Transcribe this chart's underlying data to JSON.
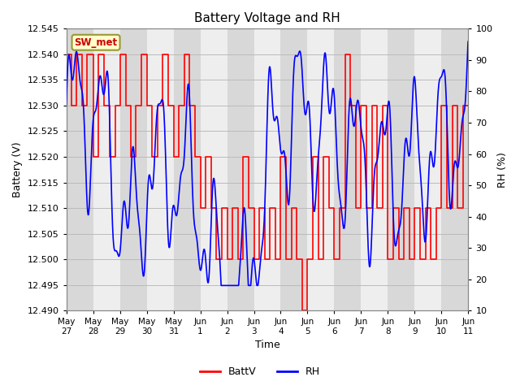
{
  "title": "Battery Voltage and RH",
  "xlabel": "Time",
  "ylabel_left": "Battery (V)",
  "ylabel_right": "RH (%)",
  "ylim_left": [
    12.49,
    12.545
  ],
  "ylim_right": [
    10,
    100
  ],
  "yticks_left": [
    12.49,
    12.495,
    12.5,
    12.505,
    12.51,
    12.515,
    12.52,
    12.525,
    12.53,
    12.535,
    12.54,
    12.545
  ],
  "yticks_right": [
    10,
    20,
    30,
    40,
    50,
    60,
    70,
    80,
    90,
    100
  ],
  "xtick_labels": [
    "May 27",
    "May 28",
    "May 29",
    "May 30",
    "May 31",
    "Jun 1",
    "Jun 2",
    "Jun 3",
    "Jun 4",
    "Jun 5",
    "Jun 6",
    "Jun 7",
    "Jun 8",
    "Jun 9",
    "Jun 10",
    "Jun 11"
  ],
  "label_box_text": "SW_met",
  "label_box_facecolor": "#ffffcc",
  "label_box_edgecolor": "#999933",
  "label_box_textcolor": "#cc0000",
  "legend_entries": [
    "BattV",
    "RH"
  ],
  "legend_colors": [
    "#ff0000",
    "#0000ff"
  ],
  "bg_color": "#ffffff",
  "plot_bg_color": "#d8d8d8",
  "band_color": "#eeeeee",
  "grid_color": "#bbbbbb",
  "batt_color": "#ff0000",
  "rh_color": "#0000ff",
  "batt_lw": 1.2,
  "rh_lw": 1.2,
  "batt_x": [
    0.0,
    0.18,
    0.18,
    0.38,
    0.38,
    0.58,
    0.58,
    0.78,
    0.78,
    1.0,
    1.0,
    1.2,
    1.2,
    1.42,
    1.42,
    1.62,
    1.62,
    1.82,
    1.82,
    2.02,
    2.02,
    2.22,
    2.22,
    2.42,
    2.42,
    2.6,
    2.6,
    2.8,
    2.8,
    3.0,
    3.0,
    3.2,
    3.2,
    3.42,
    3.42,
    3.6,
    3.6,
    3.8,
    3.8,
    4.0,
    4.0,
    4.2,
    4.2,
    4.4,
    4.4,
    4.58,
    4.58,
    4.8,
    4.8,
    5.0,
    5.0,
    5.2,
    5.2,
    5.4,
    5.4,
    5.6,
    5.6,
    5.8,
    5.8,
    6.0,
    6.0,
    6.2,
    6.2,
    6.4,
    6.4,
    6.6,
    6.6,
    6.8,
    6.8,
    7.0,
    7.0,
    7.2,
    7.2,
    7.4,
    7.4,
    7.6,
    7.6,
    7.8,
    7.8,
    8.0,
    8.0,
    8.2,
    8.2,
    8.4,
    8.4,
    8.6,
    8.6,
    8.8,
    8.8,
    9.0,
    9.0,
    9.2,
    9.2,
    9.42,
    9.42,
    9.6,
    9.6,
    9.8,
    9.8,
    10.0,
    10.0,
    10.2,
    10.2,
    10.4,
    10.4,
    10.6,
    10.6,
    10.8,
    10.8,
    11.0,
    11.0,
    11.2,
    11.2,
    11.4,
    11.4,
    11.6,
    11.6,
    11.8,
    11.8,
    12.0,
    12.0,
    12.2,
    12.2,
    12.4,
    12.4,
    12.6,
    12.6,
    12.8,
    12.8,
    13.0,
    13.0,
    13.2,
    13.2,
    13.4,
    13.4,
    13.6,
    13.6,
    13.8,
    13.8,
    14.0,
    14.0,
    14.2,
    14.2,
    14.4,
    14.4,
    14.6,
    14.6,
    14.8,
    14.8,
    15.0
  ],
  "batt_y": [
    12.54,
    12.54,
    12.53,
    12.53,
    12.54,
    12.54,
    12.53,
    12.53,
    12.54,
    12.54,
    12.52,
    12.52,
    12.54,
    12.54,
    12.53,
    12.53,
    12.52,
    12.52,
    12.53,
    12.53,
    12.54,
    12.54,
    12.53,
    12.53,
    12.52,
    12.52,
    12.53,
    12.53,
    12.54,
    12.54,
    12.53,
    12.53,
    12.52,
    12.52,
    12.53,
    12.53,
    12.54,
    12.54,
    12.53,
    12.53,
    12.52,
    12.52,
    12.53,
    12.53,
    12.54,
    12.54,
    12.53,
    12.53,
    12.52,
    12.52,
    12.51,
    12.51,
    12.52,
    12.52,
    12.51,
    12.51,
    12.5,
    12.5,
    12.51,
    12.51,
    12.5,
    12.5,
    12.51,
    12.51,
    12.5,
    12.5,
    12.52,
    12.52,
    12.51,
    12.51,
    12.5,
    12.5,
    12.51,
    12.51,
    12.5,
    12.5,
    12.51,
    12.51,
    12.5,
    12.5,
    12.52,
    12.52,
    12.5,
    12.5,
    12.51,
    12.51,
    12.5,
    12.5,
    12.49,
    12.49,
    12.5,
    12.5,
    12.52,
    12.52,
    12.5,
    12.5,
    12.52,
    12.52,
    12.51,
    12.51,
    12.5,
    12.5,
    12.51,
    12.51,
    12.54,
    12.54,
    12.53,
    12.53,
    12.51,
    12.51,
    12.53,
    12.53,
    12.51,
    12.51,
    12.53,
    12.53,
    12.51,
    12.51,
    12.53,
    12.53,
    12.5,
    12.5,
    12.51,
    12.51,
    12.5,
    12.5,
    12.51,
    12.51,
    12.5,
    12.5,
    12.51,
    12.51,
    12.5,
    12.5,
    12.51,
    12.51,
    12.5,
    12.5,
    12.51,
    12.51,
    12.53,
    12.53,
    12.51,
    12.51,
    12.53,
    12.53,
    12.51,
    12.51,
    12.53,
    12.53
  ],
  "rh_seed": 123,
  "num_days": 15
}
